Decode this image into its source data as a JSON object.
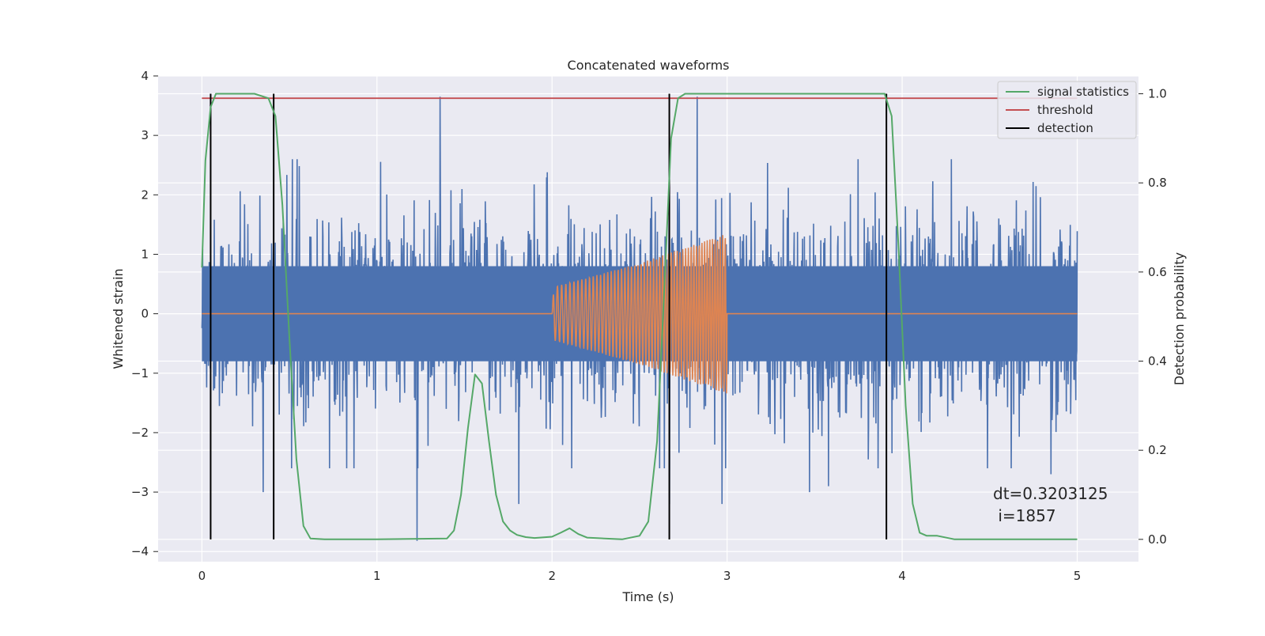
{
  "chart_data": {
    "type": "line",
    "title": "Concatenated waveforms",
    "xlabel": "Time (s)",
    "ylabel": "Whitened strain",
    "y2label": "Detection probability",
    "xlim": [
      -0.25,
      5.35
    ],
    "ylim": [
      -4.17,
      4.0
    ],
    "y2lim": [
      -0.05,
      1.04
    ],
    "x_ticks": [
      0,
      1,
      2,
      3,
      4,
      5
    ],
    "y_ticks": [
      -4,
      -3,
      -2,
      -1,
      0,
      1,
      2,
      3,
      4
    ],
    "y2_ticks": [
      0.0,
      0.2,
      0.4,
      0.6,
      0.8,
      1.0
    ],
    "x_tick_labels": [
      "0",
      "1",
      "2",
      "3",
      "4",
      "5"
    ],
    "y_tick_labels": [
      "−4",
      "−3",
      "−2",
      "−1",
      "0",
      "1",
      "2",
      "3",
      "4"
    ],
    "y2_tick_labels": [
      "0.0",
      "0.2",
      "0.4",
      "0.6",
      "0.8",
      "1.0"
    ],
    "grid": true,
    "legend_position": "top-right",
    "legend": [
      {
        "label": "signal statistics",
        "color": "#55a868"
      },
      {
        "label": "threshold",
        "color": "#c44e52"
      },
      {
        "label": "detection",
        "color": "#000000"
      }
    ],
    "series": [
      {
        "color": "#4c72b0",
        "axis": "left",
        "description": "noisy whitened strain, 0 to 5 s",
        "x_range": [
          0,
          5
        ],
        "core_band": [
          -0.8,
          0.8
        ],
        "spikes": [
          {
            "x": 1.36,
            "y": 3.65
          },
          {
            "x": 2.83,
            "y": 3.65
          },
          {
            "x": 1.23,
            "y": -3.82
          },
          {
            "x": 2.67,
            "y": -3.2
          },
          {
            "x": 4.85,
            "y": -2.7
          },
          {
            "x": 0.35,
            "y": -3.0
          },
          {
            "x": 1.81,
            "y": -3.2
          },
          {
            "x": 2.97,
            "y": -3.2
          },
          {
            "x": 3.47,
            "y": -3.0
          },
          {
            "x": 3.58,
            "y": -2.9
          }
        ]
      },
      {
        "color": "#dd8452",
        "axis": "left",
        "description": "injected chirp",
        "x": [
          0,
          2.0,
          2.01,
          2.5,
          3.0,
          3.0,
          5.0
        ],
        "envelope": [
          0,
          0,
          0.45,
          0.85,
          1.35,
          0,
          0
        ]
      },
      {
        "name": "signal statistics",
        "color": "#55a868",
        "axis": "right",
        "x": [
          0.0,
          0.02,
          0.05,
          0.08,
          0.1,
          0.3,
          0.38,
          0.42,
          0.46,
          0.5,
          0.54,
          0.58,
          0.62,
          0.7,
          1.0,
          1.4,
          1.44,
          1.48,
          1.52,
          1.56,
          1.6,
          1.64,
          1.68,
          1.72,
          1.76,
          1.8,
          1.85,
          1.9,
          2.0,
          2.05,
          2.1,
          2.15,
          2.2,
          2.4,
          2.5,
          2.55,
          2.6,
          2.64,
          2.68,
          2.72,
          2.76,
          3.9,
          3.94,
          3.98,
          4.02,
          4.06,
          4.1,
          4.14,
          4.2,
          4.3,
          5.0
        ],
        "y": [
          0.61,
          0.85,
          0.97,
          1.0,
          1.0,
          1.0,
          0.99,
          0.95,
          0.75,
          0.45,
          0.18,
          0.03,
          0.002,
          0.0,
          0.0,
          0.002,
          0.02,
          0.1,
          0.25,
          0.37,
          0.35,
          0.22,
          0.1,
          0.04,
          0.02,
          0.01,
          0.005,
          0.003,
          0.006,
          0.015,
          0.025,
          0.012,
          0.004,
          0.0,
          0.008,
          0.04,
          0.22,
          0.55,
          0.9,
          0.99,
          1.0,
          1.0,
          0.95,
          0.65,
          0.3,
          0.08,
          0.015,
          0.008,
          0.008,
          0.0,
          0.0
        ]
      },
      {
        "name": "threshold",
        "color": "#c44e52",
        "axis": "right",
        "x": [
          0,
          5
        ],
        "y": [
          0.99,
          0.99
        ]
      }
    ],
    "detections": [
      0.05,
      0.41,
      2.67,
      3.91
    ],
    "detection_range": [
      0.0,
      1.0
    ],
    "annotation": [
      "dt=0.3203125",
      " i=1857"
    ]
  }
}
